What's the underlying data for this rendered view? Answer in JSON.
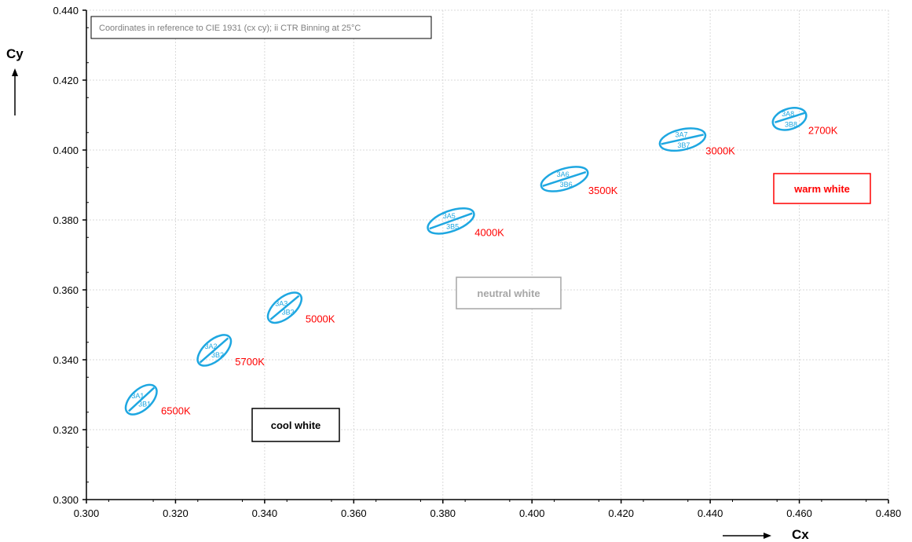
{
  "chart_data": {
    "type": "scatter",
    "note": "Coordinates in reference to CIE 1931 (cx cy); ii CTR Binning at 25°C",
    "xlabel": "Cx",
    "ylabel": "Cy",
    "xlim": [
      0.3,
      0.48
    ],
    "ylim": [
      0.3,
      0.44
    ],
    "x_ticks": [
      "0.300",
      "0.320",
      "0.340",
      "0.360",
      "0.380",
      "0.400",
      "0.420",
      "0.440",
      "0.460",
      "0.480"
    ],
    "y_ticks": [
      "0.300",
      "0.320",
      "0.340",
      "0.360",
      "0.380",
      "0.400",
      "0.420",
      "0.440"
    ],
    "grid": true,
    "ellipse_color": "#1ea7e1",
    "cct_color": "#ff0000",
    "bins": [
      {
        "cct": "6500K",
        "top": "3A1",
        "bottom": "3B1",
        "cx": 0.3123,
        "cy": 0.3286,
        "line": [
          [
            0.3095,
            0.3253
          ],
          [
            0.3152,
            0.332
          ]
        ]
      },
      {
        "cct": "5700K",
        "top": "3A2",
        "bottom": "3B2",
        "cx": 0.3287,
        "cy": 0.3427,
        "line": [
          [
            0.3255,
            0.3392
          ],
          [
            0.3318,
            0.3462
          ]
        ]
      },
      {
        "cct": "5000K",
        "top": "3A3",
        "bottom": "3B3",
        "cx": 0.3445,
        "cy": 0.3549,
        "line": [
          [
            0.3413,
            0.3515
          ],
          [
            0.3477,
            0.3583
          ]
        ]
      },
      {
        "cct": "4000K",
        "top": "3A5",
        "bottom": "3B5",
        "cx": 0.3818,
        "cy": 0.3797,
        "line": [
          [
            0.377,
            0.3775
          ],
          [
            0.3866,
            0.3819
          ]
        ]
      },
      {
        "cct": "3500K",
        "top": "3A6",
        "bottom": "3B6",
        "cx": 0.4073,
        "cy": 0.3917,
        "line": [
          [
            0.4024,
            0.3897
          ],
          [
            0.4121,
            0.3937
          ]
        ]
      },
      {
        "cct": "3000K",
        "top": "3A7",
        "bottom": "3B7",
        "cx": 0.4338,
        "cy": 0.403,
        "line": [
          [
            0.429,
            0.4017
          ],
          [
            0.4385,
            0.4044
          ]
        ]
      },
      {
        "cct": "2700K",
        "top": "3A8",
        "bottom": "3B8",
        "cx": 0.4578,
        "cy": 0.4089,
        "line": [
          [
            0.4545,
            0.4079
          ],
          [
            0.4612,
            0.4106
          ]
        ]
      }
    ],
    "regions": [
      {
        "label": "cool white",
        "color": "#000000"
      },
      {
        "label": "neutral white",
        "color": "#a6a6a6"
      },
      {
        "label": "warm white",
        "color": "#ff0000"
      }
    ]
  }
}
